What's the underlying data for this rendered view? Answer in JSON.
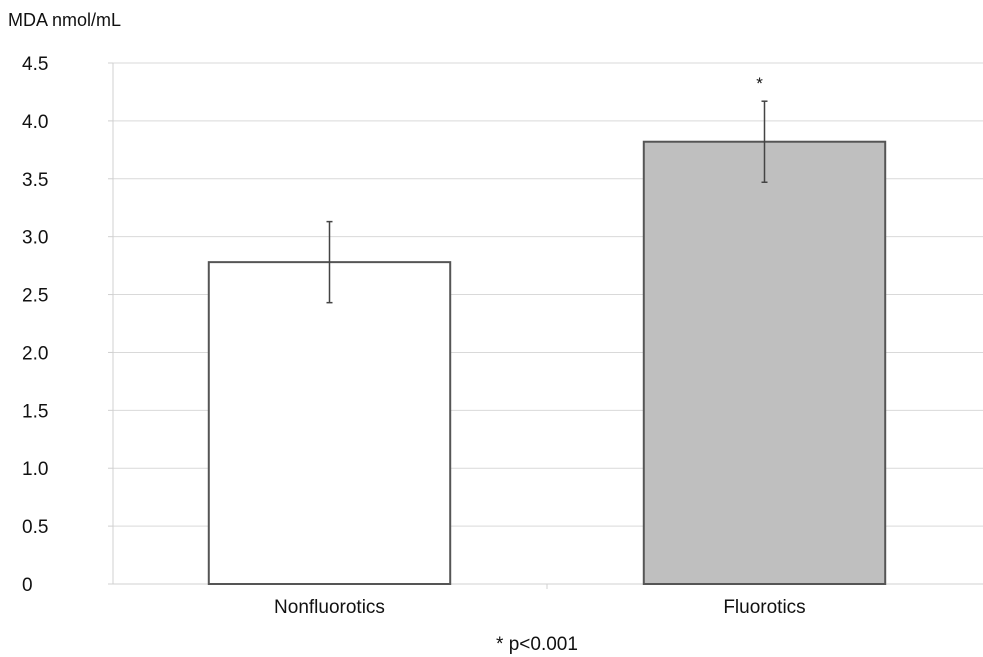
{
  "chart_data": {
    "type": "bar",
    "ylabel": "MDA nmol/mL",
    "xlabel": "",
    "categories": [
      "Nonfluorotics",
      "Fluorotics"
    ],
    "values": [
      2.78,
      3.82
    ],
    "error": [
      0.35,
      0.35
    ],
    "colors": [
      "#ffffff",
      "#bfbfbf"
    ],
    "significance": [
      "",
      "*"
    ],
    "ylim": [
      0,
      4.5
    ],
    "yticks": [
      0,
      0.5,
      1.0,
      1.5,
      2.0,
      2.5,
      3.0,
      3.5,
      4.0,
      4.5
    ],
    "ytick_labels": [
      "0",
      "0.5",
      "1.0",
      "1.5",
      "2.0",
      "2.5",
      "3.0",
      "3.5",
      "4.0",
      "4.5"
    ],
    "grid": true,
    "footnote": "* p<0.001"
  }
}
